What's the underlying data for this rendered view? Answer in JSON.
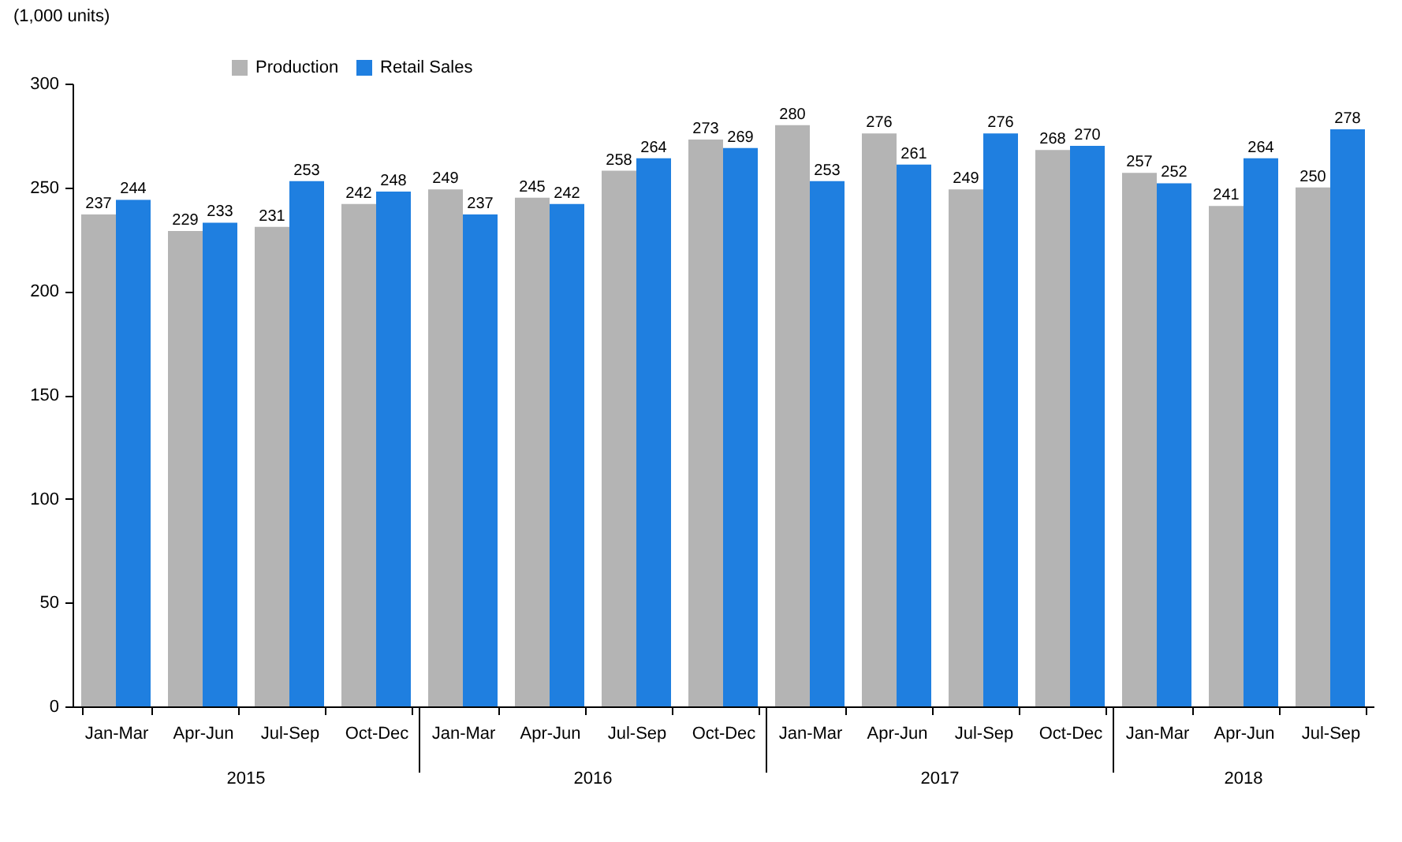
{
  "chart_data": {
    "type": "bar",
    "ylabel": "(1,000 units)",
    "categories": [
      "Jan-Mar",
      "Apr-Jun",
      "Jul-Sep",
      "Oct-Dec",
      "Jan-Mar",
      "Apr-Jun",
      "Jul-Sep",
      "Oct-Dec",
      "Jan-Mar",
      "Apr-Jun",
      "Jul-Sep",
      "Oct-Dec",
      "Jan-Mar",
      "Apr-Jun",
      "Jul-Sep"
    ],
    "series": [
      {
        "name": "Production",
        "color": "#b4b4b4",
        "values": [
          237,
          229,
          231,
          242,
          249,
          245,
          258,
          273,
          280,
          276,
          249,
          268,
          257,
          241,
          250
        ]
      },
      {
        "name": "Retail Sales",
        "color": "#1f7fe0",
        "values": [
          244,
          233,
          253,
          248,
          237,
          242,
          264,
          269,
          253,
          261,
          276,
          270,
          252,
          264,
          278
        ]
      }
    ],
    "annotations": [
      "2015",
      "2016",
      "2017",
      "2018"
    ],
    "ylim": [
      0,
      300
    ],
    "yticks": [
      0,
      50,
      100,
      150,
      200,
      250,
      300
    ],
    "data_labels": true,
    "legend": "top left"
  }
}
